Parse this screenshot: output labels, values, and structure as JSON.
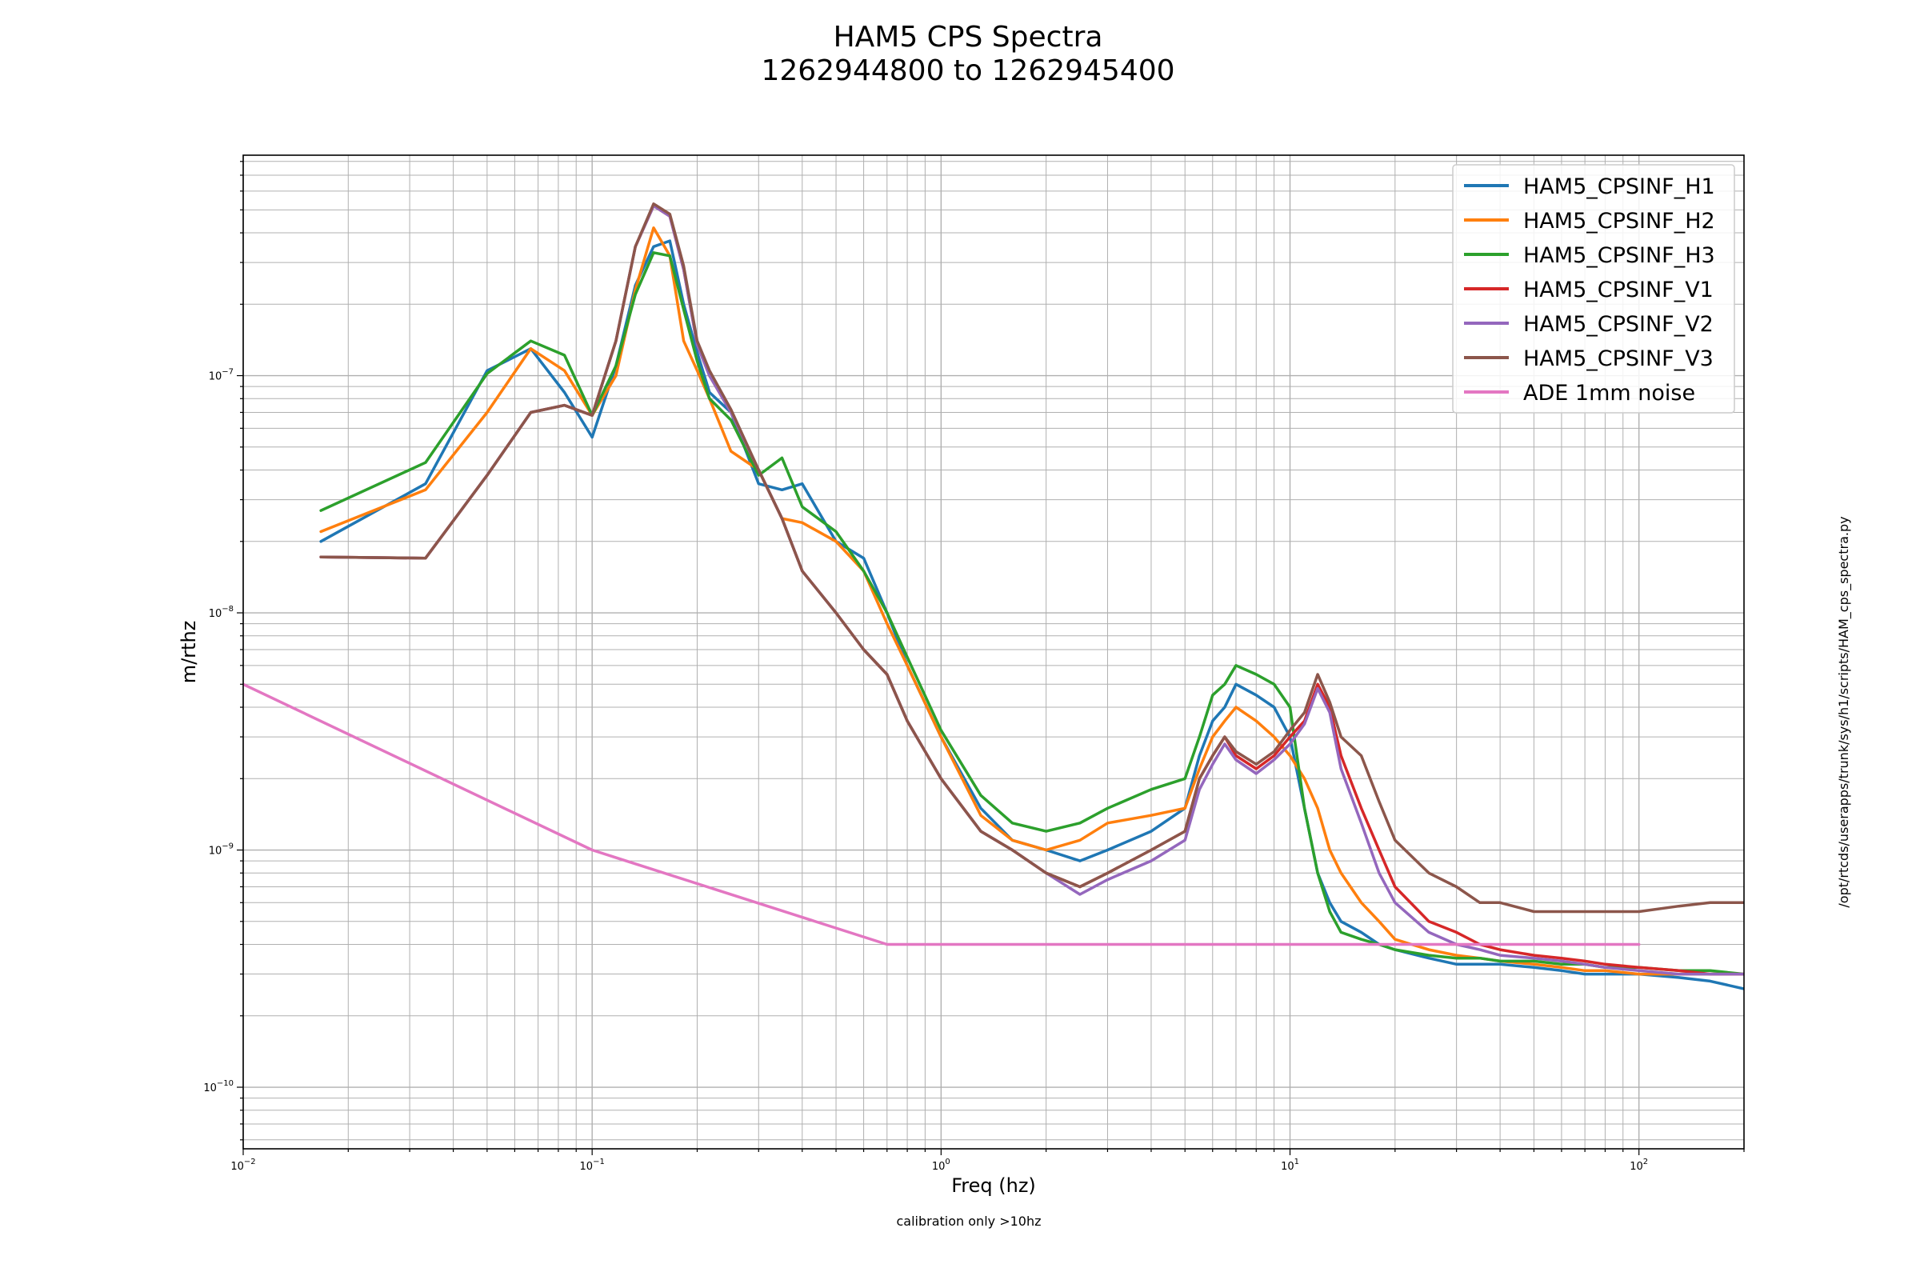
{
  "chart_data": {
    "type": "line",
    "title": "HAM5 CPS Spectra",
    "subtitle": "1262944800 to 1262945400",
    "xlabel": "Freq (hz)",
    "ylabel": "m/rthz",
    "x_scale": "log",
    "y_scale": "log",
    "xlim": [
      0.01,
      200
    ],
    "ylim": [
      5.5e-11,
      8.5e-07
    ],
    "grid": true,
    "legend_position": "top-right",
    "x_ticks": [
      {
        "value": 0.01,
        "base": "10",
        "exp": "−2"
      },
      {
        "value": 0.1,
        "base": "10",
        "exp": "−1"
      },
      {
        "value": 1,
        "base": "10",
        "exp": "0"
      },
      {
        "value": 10,
        "base": "10",
        "exp": "1"
      },
      {
        "value": 100,
        "base": "10",
        "exp": "2"
      }
    ],
    "y_ticks": [
      {
        "value": 1e-10,
        "base": "10",
        "exp": "−10"
      },
      {
        "value": 1e-09,
        "base": "10",
        "exp": "−9"
      },
      {
        "value": 1e-08,
        "base": "10",
        "exp": "−8"
      },
      {
        "value": 1e-07,
        "base": "10",
        "exp": "−7"
      }
    ],
    "side_note": "/opt/rtcds/userapps/trunk/sys/h1/scripts/HAM_cps_spectra.py",
    "bottom_note": "calibration only >10hz",
    "series": [
      {
        "name": "HAM5_CPSINF_H1",
        "color": "#1f77b4",
        "x": [
          0.0167,
          0.0333,
          0.05,
          0.0667,
          0.0833,
          0.1,
          0.117,
          0.133,
          0.15,
          0.167,
          0.183,
          0.2,
          0.217,
          0.25,
          0.3,
          0.35,
          0.4,
          0.5,
          0.6,
          0.7,
          0.8,
          1.0,
          1.3,
          1.6,
          2.0,
          2.5,
          3.0,
          4.0,
          5.0,
          5.5,
          6.0,
          6.5,
          7.0,
          8.0,
          9.0,
          10.0,
          11.0,
          12.0,
          13.0,
          14.0,
          16.0,
          18.0,
          20.0,
          25.0,
          30.0,
          35.0,
          40.0,
          50.0,
          60.0,
          70.0,
          80.0,
          100.0,
          130.0,
          160.0,
          200.0
        ],
        "y": [
          2e-08,
          3.5e-08,
          1.05e-07,
          1.3e-07,
          8.5e-08,
          5.5e-08,
          1.1e-07,
          2.4e-07,
          3.5e-07,
          3.7e-07,
          2e-07,
          1.25e-07,
          8.5e-08,
          7e-08,
          3.5e-08,
          3.3e-08,
          3.5e-08,
          2e-08,
          1.7e-08,
          1e-08,
          6e-09,
          3e-09,
          1.5e-09,
          1.1e-09,
          1e-09,
          9e-10,
          1e-09,
          1.2e-09,
          1.5e-09,
          2.5e-09,
          3.5e-09,
          4e-09,
          5e-09,
          4.5e-09,
          4e-09,
          3e-09,
          1.5e-09,
          8e-10,
          6e-10,
          5e-10,
          4.5e-10,
          4e-10,
          3.8e-10,
          3.5e-10,
          3.3e-10,
          3.3e-10,
          3.3e-10,
          3.2e-10,
          3.1e-10,
          3e-10,
          3e-10,
          3e-10,
          2.9e-10,
          2.8e-10,
          2.6e-10
        ]
      },
      {
        "name": "HAM5_CPSINF_H2",
        "color": "#ff7f0e",
        "x": [
          0.0167,
          0.0333,
          0.05,
          0.0667,
          0.0833,
          0.1,
          0.117,
          0.133,
          0.15,
          0.167,
          0.183,
          0.2,
          0.217,
          0.25,
          0.3,
          0.35,
          0.4,
          0.5,
          0.6,
          0.7,
          0.8,
          1.0,
          1.3,
          1.6,
          2.0,
          2.5,
          3.0,
          4.0,
          5.0,
          5.5,
          6.0,
          6.5,
          7.0,
          8.0,
          9.0,
          10.0,
          11.0,
          12.0,
          13.0,
          14.0,
          16.0,
          18.0,
          20.0,
          25.0,
          30.0,
          35.0,
          40.0,
          50.0,
          60.0,
          70.0,
          80.0,
          100.0,
          130.0,
          160.0,
          200.0
        ],
        "y": [
          2.2e-08,
          3.3e-08,
          7e-08,
          1.3e-07,
          1.05e-07,
          6.8e-08,
          1e-07,
          2.3e-07,
          4.2e-07,
          3.2e-07,
          1.4e-07,
          1.05e-07,
          8e-08,
          4.8e-08,
          4e-08,
          2.5e-08,
          2.4e-08,
          2e-08,
          1.5e-08,
          9e-09,
          6e-09,
          3e-09,
          1.4e-09,
          1.1e-09,
          1e-09,
          1.1e-09,
          1.3e-09,
          1.4e-09,
          1.5e-09,
          2.2e-09,
          3e-09,
          3.5e-09,
          4e-09,
          3.5e-09,
          3e-09,
          2.5e-09,
          2e-09,
          1.5e-09,
          1e-09,
          8e-10,
          6e-10,
          5e-10,
          4.2e-10,
          3.8e-10,
          3.6e-10,
          3.5e-10,
          3.4e-10,
          3.3e-10,
          3.2e-10,
          3.1e-10,
          3.1e-10,
          3e-10,
          3e-10,
          3e-10,
          3e-10
        ]
      },
      {
        "name": "HAM5_CPSINF_H3",
        "color": "#2ca02c",
        "x": [
          0.0167,
          0.0333,
          0.05,
          0.0667,
          0.0833,
          0.1,
          0.117,
          0.133,
          0.15,
          0.167,
          0.183,
          0.2,
          0.217,
          0.25,
          0.3,
          0.35,
          0.4,
          0.5,
          0.6,
          0.7,
          0.8,
          1.0,
          1.3,
          1.6,
          2.0,
          2.5,
          3.0,
          4.0,
          5.0,
          5.5,
          6.0,
          6.5,
          7.0,
          8.0,
          9.0,
          10.0,
          11.0,
          12.0,
          13.0,
          14.0,
          16.0,
          18.0,
          20.0,
          25.0,
          30.0,
          35.0,
          40.0,
          50.0,
          60.0,
          70.0,
          80.0,
          100.0,
          130.0,
          160.0,
          200.0
        ],
        "y": [
          2.7e-08,
          4.3e-08,
          1.02e-07,
          1.4e-07,
          1.22e-07,
          6.8e-08,
          1.1e-07,
          2.2e-07,
          3.3e-07,
          3.2e-07,
          1.9e-07,
          1.15e-07,
          8e-08,
          6.5e-08,
          3.8e-08,
          4.5e-08,
          2.8e-08,
          2.2e-08,
          1.5e-08,
          1e-08,
          6.5e-09,
          3.2e-09,
          1.7e-09,
          1.3e-09,
          1.2e-09,
          1.3e-09,
          1.5e-09,
          1.8e-09,
          2e-09,
          3e-09,
          4.5e-09,
          5e-09,
          6e-09,
          5.5e-09,
          5e-09,
          4e-09,
          1.5e-09,
          8e-10,
          5.5e-10,
          4.5e-10,
          4.2e-10,
          4e-10,
          3.8e-10,
          3.6e-10,
          3.5e-10,
          3.5e-10,
          3.4e-10,
          3.4e-10,
          3.3e-10,
          3.3e-10,
          3.2e-10,
          3.2e-10,
          3.1e-10,
          3.1e-10,
          3e-10
        ]
      },
      {
        "name": "HAM5_CPSINF_V1",
        "color": "#d62728",
        "x": [
          0.0167,
          0.0333,
          0.05,
          0.0667,
          0.0833,
          0.1,
          0.117,
          0.133,
          0.15,
          0.167,
          0.183,
          0.2,
          0.217,
          0.25,
          0.3,
          0.35,
          0.4,
          0.5,
          0.6,
          0.7,
          0.8,
          1.0,
          1.3,
          1.6,
          2.0,
          2.5,
          3.0,
          4.0,
          5.0,
          5.5,
          6.0,
          6.5,
          7.0,
          8.0,
          9.0,
          10.0,
          11.0,
          12.0,
          13.0,
          14.0,
          16.0,
          18.0,
          20.0,
          25.0,
          30.0,
          35.0,
          40.0,
          50.0,
          60.0,
          70.0,
          80.0,
          100.0,
          130.0,
          160.0,
          200.0
        ],
        "y": [
          1.72e-08,
          1.7e-08,
          3.8e-08,
          7e-08,
          7.5e-08,
          6.8e-08,
          1.4e-07,
          3.5e-07,
          5.2e-07,
          4.7e-07,
          2.8e-07,
          1.35e-07,
          1e-07,
          7e-08,
          4e-08,
          2.5e-08,
          1.5e-08,
          1e-08,
          7e-09,
          5.5e-09,
          3.5e-09,
          2e-09,
          1.2e-09,
          1e-09,
          8e-10,
          7e-10,
          8e-10,
          1e-09,
          1.2e-09,
          2e-09,
          2.5e-09,
          3e-09,
          2.5e-09,
          2.2e-09,
          2.5e-09,
          3e-09,
          3.5e-09,
          5e-09,
          4e-09,
          2.5e-09,
          1.5e-09,
          1e-09,
          7e-10,
          5e-10,
          4.5e-10,
          4e-10,
          3.8e-10,
          3.6e-10,
          3.5e-10,
          3.4e-10,
          3.3e-10,
          3.2e-10,
          3.1e-10,
          3e-10,
          3e-10
        ]
      },
      {
        "name": "HAM5_CPSINF_V2",
        "color": "#9467bd",
        "x": [
          0.0167,
          0.0333,
          0.05,
          0.0667,
          0.0833,
          0.1,
          0.117,
          0.133,
          0.15,
          0.167,
          0.183,
          0.2,
          0.217,
          0.25,
          0.3,
          0.35,
          0.4,
          0.5,
          0.6,
          0.7,
          0.8,
          1.0,
          1.3,
          1.6,
          2.0,
          2.5,
          3.0,
          4.0,
          5.0,
          5.5,
          6.0,
          6.5,
          7.0,
          8.0,
          9.0,
          10.0,
          11.0,
          12.0,
          13.0,
          14.0,
          16.0,
          18.0,
          20.0,
          25.0,
          30.0,
          35.0,
          40.0,
          50.0,
          60.0,
          70.0,
          80.0,
          100.0,
          130.0,
          160.0,
          200.0
        ],
        "y": [
          1.72e-08,
          1.7e-08,
          3.8e-08,
          7e-08,
          7.5e-08,
          6.8e-08,
          1.4e-07,
          3.5e-07,
          5.2e-07,
          4.7e-07,
          2.8e-07,
          1.35e-07,
          1e-07,
          7e-08,
          4e-08,
          2.5e-08,
          1.5e-08,
          1e-08,
          7e-09,
          5.5e-09,
          3.5e-09,
          2e-09,
          1.2e-09,
          1e-09,
          8e-10,
          6.5e-10,
          7.5e-10,
          9e-10,
          1.1e-09,
          1.8e-09,
          2.3e-09,
          2.8e-09,
          2.4e-09,
          2.1e-09,
          2.4e-09,
          2.8e-09,
          3.4e-09,
          4.8e-09,
          3.8e-09,
          2.2e-09,
          1.3e-09,
          8e-10,
          6e-10,
          4.5e-10,
          4e-10,
          3.8e-10,
          3.6e-10,
          3.5e-10,
          3.4e-10,
          3.3e-10,
          3.2e-10,
          3.1e-10,
          3e-10,
          3e-10,
          3e-10
        ]
      },
      {
        "name": "HAM5_CPSINF_V3",
        "color": "#8c564b",
        "x": [
          0.0167,
          0.0333,
          0.05,
          0.0667,
          0.0833,
          0.1,
          0.117,
          0.133,
          0.15,
          0.167,
          0.183,
          0.2,
          0.217,
          0.25,
          0.3,
          0.35,
          0.4,
          0.5,
          0.6,
          0.7,
          0.8,
          1.0,
          1.3,
          1.6,
          2.0,
          2.5,
          3.0,
          4.0,
          5.0,
          5.5,
          6.0,
          6.5,
          7.0,
          8.0,
          9.0,
          10.0,
          11.0,
          12.0,
          13.0,
          14.0,
          16.0,
          18.0,
          20.0,
          25.0,
          30.0,
          35.0,
          40.0,
          50.0,
          60.0,
          70.0,
          80.0,
          100.0,
          130.0,
          160.0,
          200.0
        ],
        "y": [
          1.72e-08,
          1.7e-08,
          3.8e-08,
          7e-08,
          7.5e-08,
          6.8e-08,
          1.4e-07,
          3.5e-07,
          5.3e-07,
          4.8e-07,
          2.9e-07,
          1.4e-07,
          1.05e-07,
          7.2e-08,
          4e-08,
          2.5e-08,
          1.5e-08,
          1e-08,
          7e-09,
          5.5e-09,
          3.5e-09,
          2e-09,
          1.2e-09,
          1e-09,
          8e-10,
          7e-10,
          8e-10,
          1e-09,
          1.2e-09,
          2e-09,
          2.5e-09,
          3e-09,
          2.6e-09,
          2.3e-09,
          2.6e-09,
          3.2e-09,
          3.8e-09,
          5.5e-09,
          4.2e-09,
          3e-09,
          2.5e-09,
          1.6e-09,
          1.1e-09,
          8e-10,
          7e-10,
          6e-10,
          6e-10,
          5.5e-10,
          5.5e-10,
          5.5e-10,
          5.5e-10,
          5.5e-10,
          5.8e-10,
          6e-10,
          6e-10
        ]
      },
      {
        "name": "ADE 1mm noise",
        "color": "#e377c2",
        "x": [
          0.01,
          0.1,
          0.7,
          100
        ],
        "y": [
          5e-09,
          1e-09,
          4e-10,
          4e-10
        ]
      }
    ]
  }
}
